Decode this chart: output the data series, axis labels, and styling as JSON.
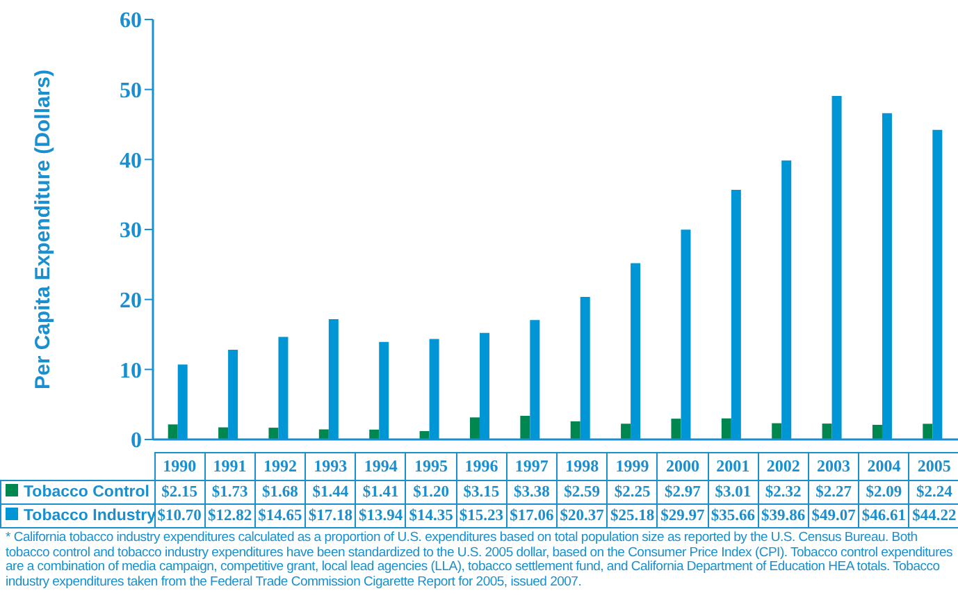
{
  "chart_data": {
    "type": "bar",
    "ylabel": "Per Capita Expenditure (Dollars)",
    "categories": [
      "1990",
      "1991",
      "1992",
      "1993",
      "1994",
      "1995",
      "1996",
      "1997",
      "1998",
      "1999",
      "2000",
      "2001",
      "2002",
      "2003",
      "2004",
      "2005"
    ],
    "series": [
      {
        "name": "Tobacco Control",
        "color": "#00874f",
        "values": [
          2.15,
          1.73,
          1.68,
          1.44,
          1.41,
          1.2,
          3.15,
          3.38,
          2.59,
          2.25,
          2.97,
          3.01,
          2.32,
          2.27,
          2.09,
          2.24
        ],
        "value_labels": [
          "$2.15",
          "$1.73",
          "$1.68",
          "$1.44",
          "$1.41",
          "$1.20",
          "$3.15",
          "$3.38",
          "$2.59",
          "$2.25",
          "$2.97",
          "$3.01",
          "$2.32",
          "$2.27",
          "$2.09",
          "$2.24"
        ]
      },
      {
        "name": "Tobacco Industry",
        "color": "#0096d6",
        "values": [
          10.7,
          12.82,
          14.65,
          17.18,
          13.94,
          14.35,
          15.23,
          17.06,
          20.37,
          25.18,
          29.97,
          35.66,
          39.86,
          49.07,
          46.61,
          44.22
        ],
        "value_labels": [
          "$10.70",
          "$12.82",
          "$14.65",
          "$17.18",
          "$13.94",
          "$14.35",
          "$15.23",
          "$17.06",
          "$20.37",
          "$25.18",
          "$29.97",
          "$35.66",
          "$39.86",
          "$49.07",
          "$46.61",
          "$44.22"
        ]
      }
    ],
    "ylim": [
      0,
      60
    ],
    "yticks": [
      0,
      10,
      20,
      30,
      40,
      50,
      60
    ],
    "grid": false,
    "legend": "bottom",
    "annotations": [
      "* California tobacco industry expenditures calculated as a proportion of U.S. expenditures based on total population size as reported by the U.S. Census Bureau. Both tobacco control and tobacco industry expenditures have been standardized to the U.S. 2005 dollar, based on the Consumer Price Index (CPI). Tobacco control expenditures are a combination of media campaign, competitive grant, local lead agencies (LLA), tobacco settlement fund, and California Department of Education HEA totals. Tobacco industry expenditures taken from the Federal Trade Commission Cigarette Report for 2005, issued 2007."
    ]
  }
}
